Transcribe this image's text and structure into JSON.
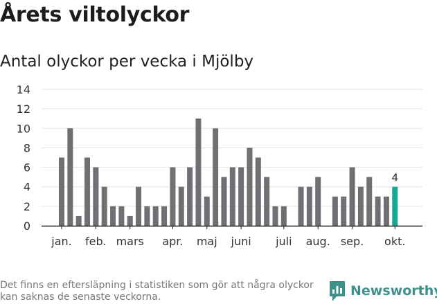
{
  "title": "Årets viltolyckor",
  "subtitle": "Antal olyckor per vecka i Mjölby",
  "footnote": "Det finns en eftersläpning i statistiken som gör att några olyckor kan saknas de senaste veckorna.",
  "brand": {
    "name": "Newsworthy",
    "icon": "newsworthy-logo-icon"
  },
  "colors": {
    "bar": "#707074",
    "highlight": "#1aa597",
    "grid": "#e3e3e3",
    "axis": "#222222",
    "brand": "#3f8f8a"
  },
  "chart_data": {
    "type": "bar",
    "title": "Antal olyckor per vecka i Mjölby",
    "xlabel": "",
    "ylabel": "",
    "ylim": [
      0,
      14
    ],
    "yticks": [
      0,
      2,
      4,
      6,
      8,
      10,
      12,
      14
    ],
    "weeks": [
      1,
      2,
      3,
      4,
      5,
      6,
      7,
      8,
      9,
      10,
      11,
      12,
      13,
      14,
      15,
      16,
      17,
      18,
      19,
      20,
      21,
      22,
      23,
      24,
      25,
      26,
      27,
      28,
      29,
      30,
      31,
      32,
      33,
      34,
      35,
      36,
      37,
      38,
      39,
      40,
      41
    ],
    "values": [
      7,
      10,
      1,
      7,
      6,
      4,
      2,
      2,
      1,
      4,
      2,
      2,
      2,
      6,
      4,
      6,
      11,
      3,
      10,
      5,
      6,
      6,
      8,
      7,
      5,
      2,
      2,
      0,
      4,
      4,
      5,
      0,
      3,
      3,
      6,
      4,
      5,
      3,
      3,
      4,
      0
    ],
    "highlight_index": 39,
    "highlight_label": "4",
    "months": [
      {
        "label": "jan.",
        "week": 1
      },
      {
        "label": "feb.",
        "week": 5
      },
      {
        "label": "mars",
        "week": 9
      },
      {
        "label": "apr.",
        "week": 14
      },
      {
        "label": "maj",
        "week": 18
      },
      {
        "label": "juni",
        "week": 22
      },
      {
        "label": "juli",
        "week": 27
      },
      {
        "label": "aug.",
        "week": 31
      },
      {
        "label": "sep.",
        "week": 35
      },
      {
        "label": "okt.",
        "week": 40
      }
    ]
  }
}
